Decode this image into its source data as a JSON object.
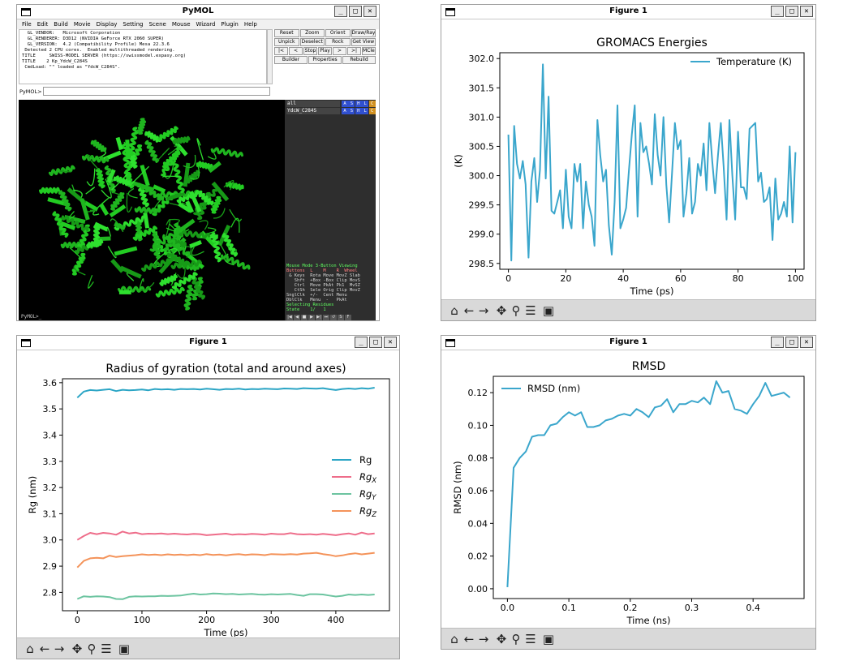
{
  "pymol": {
    "title": "PyMOL",
    "menu": [
      "File",
      "Edit",
      "Build",
      "Movie",
      "Display",
      "Setting",
      "Scene",
      "Mouse",
      "Wizard",
      "Plugin",
      "Help"
    ],
    "console_lines": [
      "  GL_VENDOR:   Microsoft Corporation",
      "  GL_RENDERER: D3D12 (NVIDIA GeForce RTX 2060 SUPER)",
      "  GL_VERSION:  4.2 (Compatibility Profile) Mesa 22.3.6",
      " Detected 2 CPU cores.  Enabled multithreaded rendering.",
      "TITLE     SWISS-MODEL SERVER (https://swissmodel.expasy.org)",
      "TITLE    2 Kp_YdcW_C284S",
      " CmdLoad: \"\" loaded as \"YdcW_C284S\"."
    ],
    "buttons": [
      [
        "Reset",
        "Zoom",
        "Orient",
        "Draw/Ray ▾"
      ],
      [
        "Unpick",
        "Deselect",
        "Rock",
        "Get View"
      ],
      [
        "|<",
        "<",
        "Stop",
        "Play",
        ">",
        ">|",
        "MClear"
      ],
      [
        "Builder",
        "Properties",
        "Rebuild"
      ]
    ],
    "cmd_label": "PyMOL>",
    "objects": [
      {
        "name": "all",
        "actions": [
          "A",
          "S",
          "H",
          "L",
          "C"
        ]
      },
      {
        "name": "YdcW_C284S",
        "actions": [
          "A",
          "S",
          "H",
          "L",
          "C"
        ]
      }
    ],
    "mouse_lines": [
      "Mouse Mode 3-Button Viewing",
      "Buttons  L    M    R  Wheel",
      " & Keys  Rota Move MovZ Slab",
      "   Shft  +Box -Box Clip MovS",
      "   Ctrl  Move PkAt Pk1  MvSZ",
      "   CtSh  Sele Orig Clip MovZ",
      "SnglClk  +/-  Cent Menu",
      "DblClk   Menu  -   PkAt",
      "Selecting Residues",
      "State    1/   1"
    ],
    "status": "PyMOL>_",
    "colors": {
      "structure": "#22cc22",
      "viewer_bg": "#000000",
      "panel_bg": "#2e2e2e"
    }
  },
  "energy": {
    "window_title": "Figure 1",
    "chart_data": {
      "type": "line",
      "title": "GROMACS Energies",
      "xlabel": "Time (ps)",
      "ylabel": "(K)",
      "xlim": [
        -3,
        103
      ],
      "ylim": [
        298.4,
        302.1
      ],
      "xticks": [
        0,
        20,
        40,
        60,
        80,
        100
      ],
      "yticks": [
        298.5,
        299.0,
        299.5,
        300.0,
        300.5,
        301.0,
        301.5,
        302.0
      ],
      "legend_loc": "upper right",
      "series": [
        {
          "name": "Temperature (K)",
          "color": "#3aa6cc",
          "x": [
            0,
            1,
            2,
            3,
            4,
            5,
            6,
            7,
            8,
            9,
            10,
            11,
            12,
            13,
            14,
            15,
            16,
            17,
            18,
            19,
            20,
            21,
            22,
            23,
            24,
            25,
            26,
            27,
            28,
            29,
            30,
            31,
            32,
            33,
            34,
            35,
            36,
            37,
            38,
            39,
            40,
            41,
            42,
            43,
            44,
            45,
            46,
            47,
            48,
            49,
            50,
            51,
            52,
            53,
            54,
            55,
            56,
            57,
            58,
            59,
            60,
            61,
            62,
            63,
            64,
            65,
            66,
            67,
            68,
            69,
            70,
            71,
            72,
            73,
            74,
            75,
            76,
            77,
            78,
            79,
            80,
            81,
            82,
            83,
            84,
            85,
            86,
            87,
            88,
            89,
            90,
            91,
            92,
            93,
            94,
            95,
            96,
            97,
            98,
            99,
            100
          ],
          "y": [
            300.7,
            298.55,
            300.85,
            300.2,
            299.95,
            300.25,
            299.85,
            298.6,
            299.9,
            300.3,
            299.55,
            300.1,
            301.9,
            299.95,
            301.35,
            299.4,
            299.35,
            299.55,
            299.75,
            299.1,
            300.1,
            299.3,
            299.1,
            300.2,
            299.9,
            300.2,
            299.1,
            299.9,
            299.5,
            299.3,
            298.8,
            300.95,
            300.35,
            299.9,
            300.1,
            299.15,
            298.65,
            299.55,
            301.2,
            299.1,
            299.25,
            299.45,
            300.1,
            300.7,
            301.2,
            299.3,
            300.9,
            300.4,
            300.5,
            300.2,
            299.85,
            301.05,
            300.35,
            300.0,
            301.0,
            299.85,
            299.2,
            300.05,
            300.9,
            300.45,
            300.6,
            299.3,
            299.7,
            300.3,
            299.35,
            299.55,
            300.2,
            300.0,
            300.55,
            299.75,
            300.9,
            300.25,
            299.7,
            300.35,
            300.9,
            300.15,
            299.25,
            300.95,
            300.0,
            299.25,
            300.75,
            299.8,
            299.8,
            299.6,
            300.8,
            300.85,
            300.9,
            299.9,
            300.05,
            299.55,
            299.6,
            299.8,
            298.9,
            299.95,
            299.25,
            299.35,
            299.55,
            299.3,
            300.5,
            299.2,
            300.4
          ]
        }
      ]
    }
  },
  "rg": {
    "window_title": "Figure 1",
    "chart_data": {
      "type": "line",
      "title": "Radius of gyration (total and around axes)",
      "xlabel": "Time (ps)",
      "ylabel": "Rg (nm)",
      "xlim": [
        -23,
        483
      ],
      "ylim": [
        2.73,
        3.615
      ],
      "xticks": [
        0,
        100,
        200,
        300,
        400
      ],
      "yticks": [
        2.8,
        2.9,
        3.0,
        3.1,
        3.2,
        3.3,
        3.4,
        3.5,
        3.6
      ],
      "legend_loc": "center right",
      "x": [
        0,
        10,
        20,
        30,
        40,
        50,
        60,
        70,
        80,
        90,
        100,
        110,
        120,
        130,
        140,
        150,
        160,
        170,
        180,
        190,
        200,
        210,
        220,
        230,
        240,
        250,
        260,
        270,
        280,
        290,
        300,
        310,
        320,
        330,
        340,
        350,
        360,
        370,
        380,
        390,
        400,
        410,
        420,
        430,
        440,
        450,
        460
      ],
      "series": [
        {
          "name": "Rg",
          "color": "#2ba5c5",
          "values": [
            3.543,
            3.566,
            3.572,
            3.57,
            3.573,
            3.575,
            3.568,
            3.573,
            3.571,
            3.572,
            3.574,
            3.571,
            3.576,
            3.574,
            3.575,
            3.573,
            3.576,
            3.575,
            3.576,
            3.574,
            3.577,
            3.575,
            3.573,
            3.576,
            3.575,
            3.577,
            3.574,
            3.576,
            3.575,
            3.577,
            3.576,
            3.575,
            3.578,
            3.577,
            3.576,
            3.579,
            3.578,
            3.577,
            3.579,
            3.575,
            3.572,
            3.576,
            3.578,
            3.576,
            3.579,
            3.577,
            3.581
          ]
        },
        {
          "name": "Rg_X",
          "color": "#ee6d8a",
          "values": [
            3.0,
            3.015,
            3.027,
            3.022,
            3.027,
            3.025,
            3.02,
            3.032,
            3.025,
            3.028,
            3.022,
            3.024,
            3.023,
            3.025,
            3.022,
            3.024,
            3.022,
            3.021,
            3.023,
            3.022,
            3.018,
            3.02,
            3.022,
            3.024,
            3.02,
            3.022,
            3.021,
            3.023,
            3.022,
            3.02,
            3.024,
            3.022,
            3.022,
            3.026,
            3.022,
            3.021,
            3.022,
            3.02,
            3.023,
            3.021,
            3.018,
            3.022,
            3.025,
            3.02,
            3.028,
            3.022,
            3.025
          ]
        },
        {
          "name": "Rg_Y",
          "color": "#6cc4a0",
          "values": [
            2.775,
            2.785,
            2.783,
            2.785,
            2.784,
            2.782,
            2.775,
            2.774,
            2.783,
            2.785,
            2.784,
            2.785,
            2.785,
            2.787,
            2.786,
            2.787,
            2.788,
            2.792,
            2.795,
            2.792,
            2.793,
            2.796,
            2.795,
            2.793,
            2.794,
            2.792,
            2.793,
            2.794,
            2.792,
            2.791,
            2.793,
            2.792,
            2.793,
            2.794,
            2.79,
            2.787,
            2.793,
            2.793,
            2.792,
            2.788,
            2.784,
            2.787,
            2.792,
            2.79,
            2.792,
            2.79,
            2.792
          ]
        },
        {
          "name": "Rg_Z",
          "color": "#f4935a",
          "values": [
            2.895,
            2.92,
            2.93,
            2.932,
            2.93,
            2.94,
            2.935,
            2.938,
            2.94,
            2.942,
            2.945,
            2.943,
            2.944,
            2.942,
            2.945,
            2.943,
            2.944,
            2.942,
            2.944,
            2.942,
            2.946,
            2.943,
            2.944,
            2.941,
            2.944,
            2.946,
            2.943,
            2.945,
            2.944,
            2.942,
            2.946,
            2.945,
            2.944,
            2.946,
            2.944,
            2.948,
            2.949,
            2.951,
            2.946,
            2.943,
            2.938,
            2.941,
            2.946,
            2.949,
            2.945,
            2.948,
            2.951
          ]
        }
      ],
      "legend": [
        {
          "main": "Rg",
          "sub": ""
        },
        {
          "main": "Rg",
          "sub": "X"
        },
        {
          "main": "Rg",
          "sub": "Y"
        },
        {
          "main": "Rg",
          "sub": "Z"
        }
      ]
    }
  },
  "rmsd": {
    "window_title": "Figure 1",
    "chart_data": {
      "type": "line",
      "title": "RMSD",
      "xlabel": "Time (ns)",
      "ylabel": "RMSD (nm)",
      "xlim": [
        -0.023,
        0.483
      ],
      "ylim": [
        -0.006,
        0.13
      ],
      "xticks": [
        0.0,
        0.1,
        0.2,
        0.3,
        0.4
      ],
      "yticks": [
        0.0,
        0.02,
        0.04,
        0.06,
        0.08,
        0.1,
        0.12
      ],
      "legend_loc": "upper left",
      "series": [
        {
          "name": "RMSD (nm)",
          "color": "#3aa6cc",
          "x": [
            0.0,
            0.01,
            0.02,
            0.03,
            0.04,
            0.05,
            0.06,
            0.07,
            0.08,
            0.09,
            0.1,
            0.11,
            0.12,
            0.13,
            0.14,
            0.15,
            0.16,
            0.17,
            0.18,
            0.19,
            0.2,
            0.21,
            0.22,
            0.23,
            0.24,
            0.25,
            0.26,
            0.27,
            0.28,
            0.29,
            0.3,
            0.31,
            0.32,
            0.33,
            0.34,
            0.35,
            0.36,
            0.37,
            0.38,
            0.39,
            0.4,
            0.41,
            0.42,
            0.43,
            0.44,
            0.45,
            0.46
          ],
          "y": [
            0.001,
            0.074,
            0.08,
            0.084,
            0.093,
            0.094,
            0.094,
            0.1,
            0.101,
            0.105,
            0.108,
            0.106,
            0.108,
            0.099,
            0.099,
            0.1,
            0.103,
            0.104,
            0.106,
            0.107,
            0.106,
            0.11,
            0.108,
            0.105,
            0.111,
            0.112,
            0.116,
            0.108,
            0.113,
            0.113,
            0.115,
            0.114,
            0.117,
            0.113,
            0.127,
            0.12,
            0.121,
            0.11,
            0.109,
            0.107,
            0.113,
            0.118,
            0.126,
            0.118,
            0.119,
            0.12,
            0.117
          ]
        }
      ]
    }
  },
  "nav_toolbar": {
    "icons": [
      "home-icon",
      "back-icon",
      "forward-icon",
      "pan-icon",
      "zoom-icon",
      "configure-icon",
      "save-icon"
    ],
    "glyphs": [
      "⌂",
      "←",
      "→",
      "✥",
      "⚲",
      "☰",
      "▣"
    ]
  }
}
